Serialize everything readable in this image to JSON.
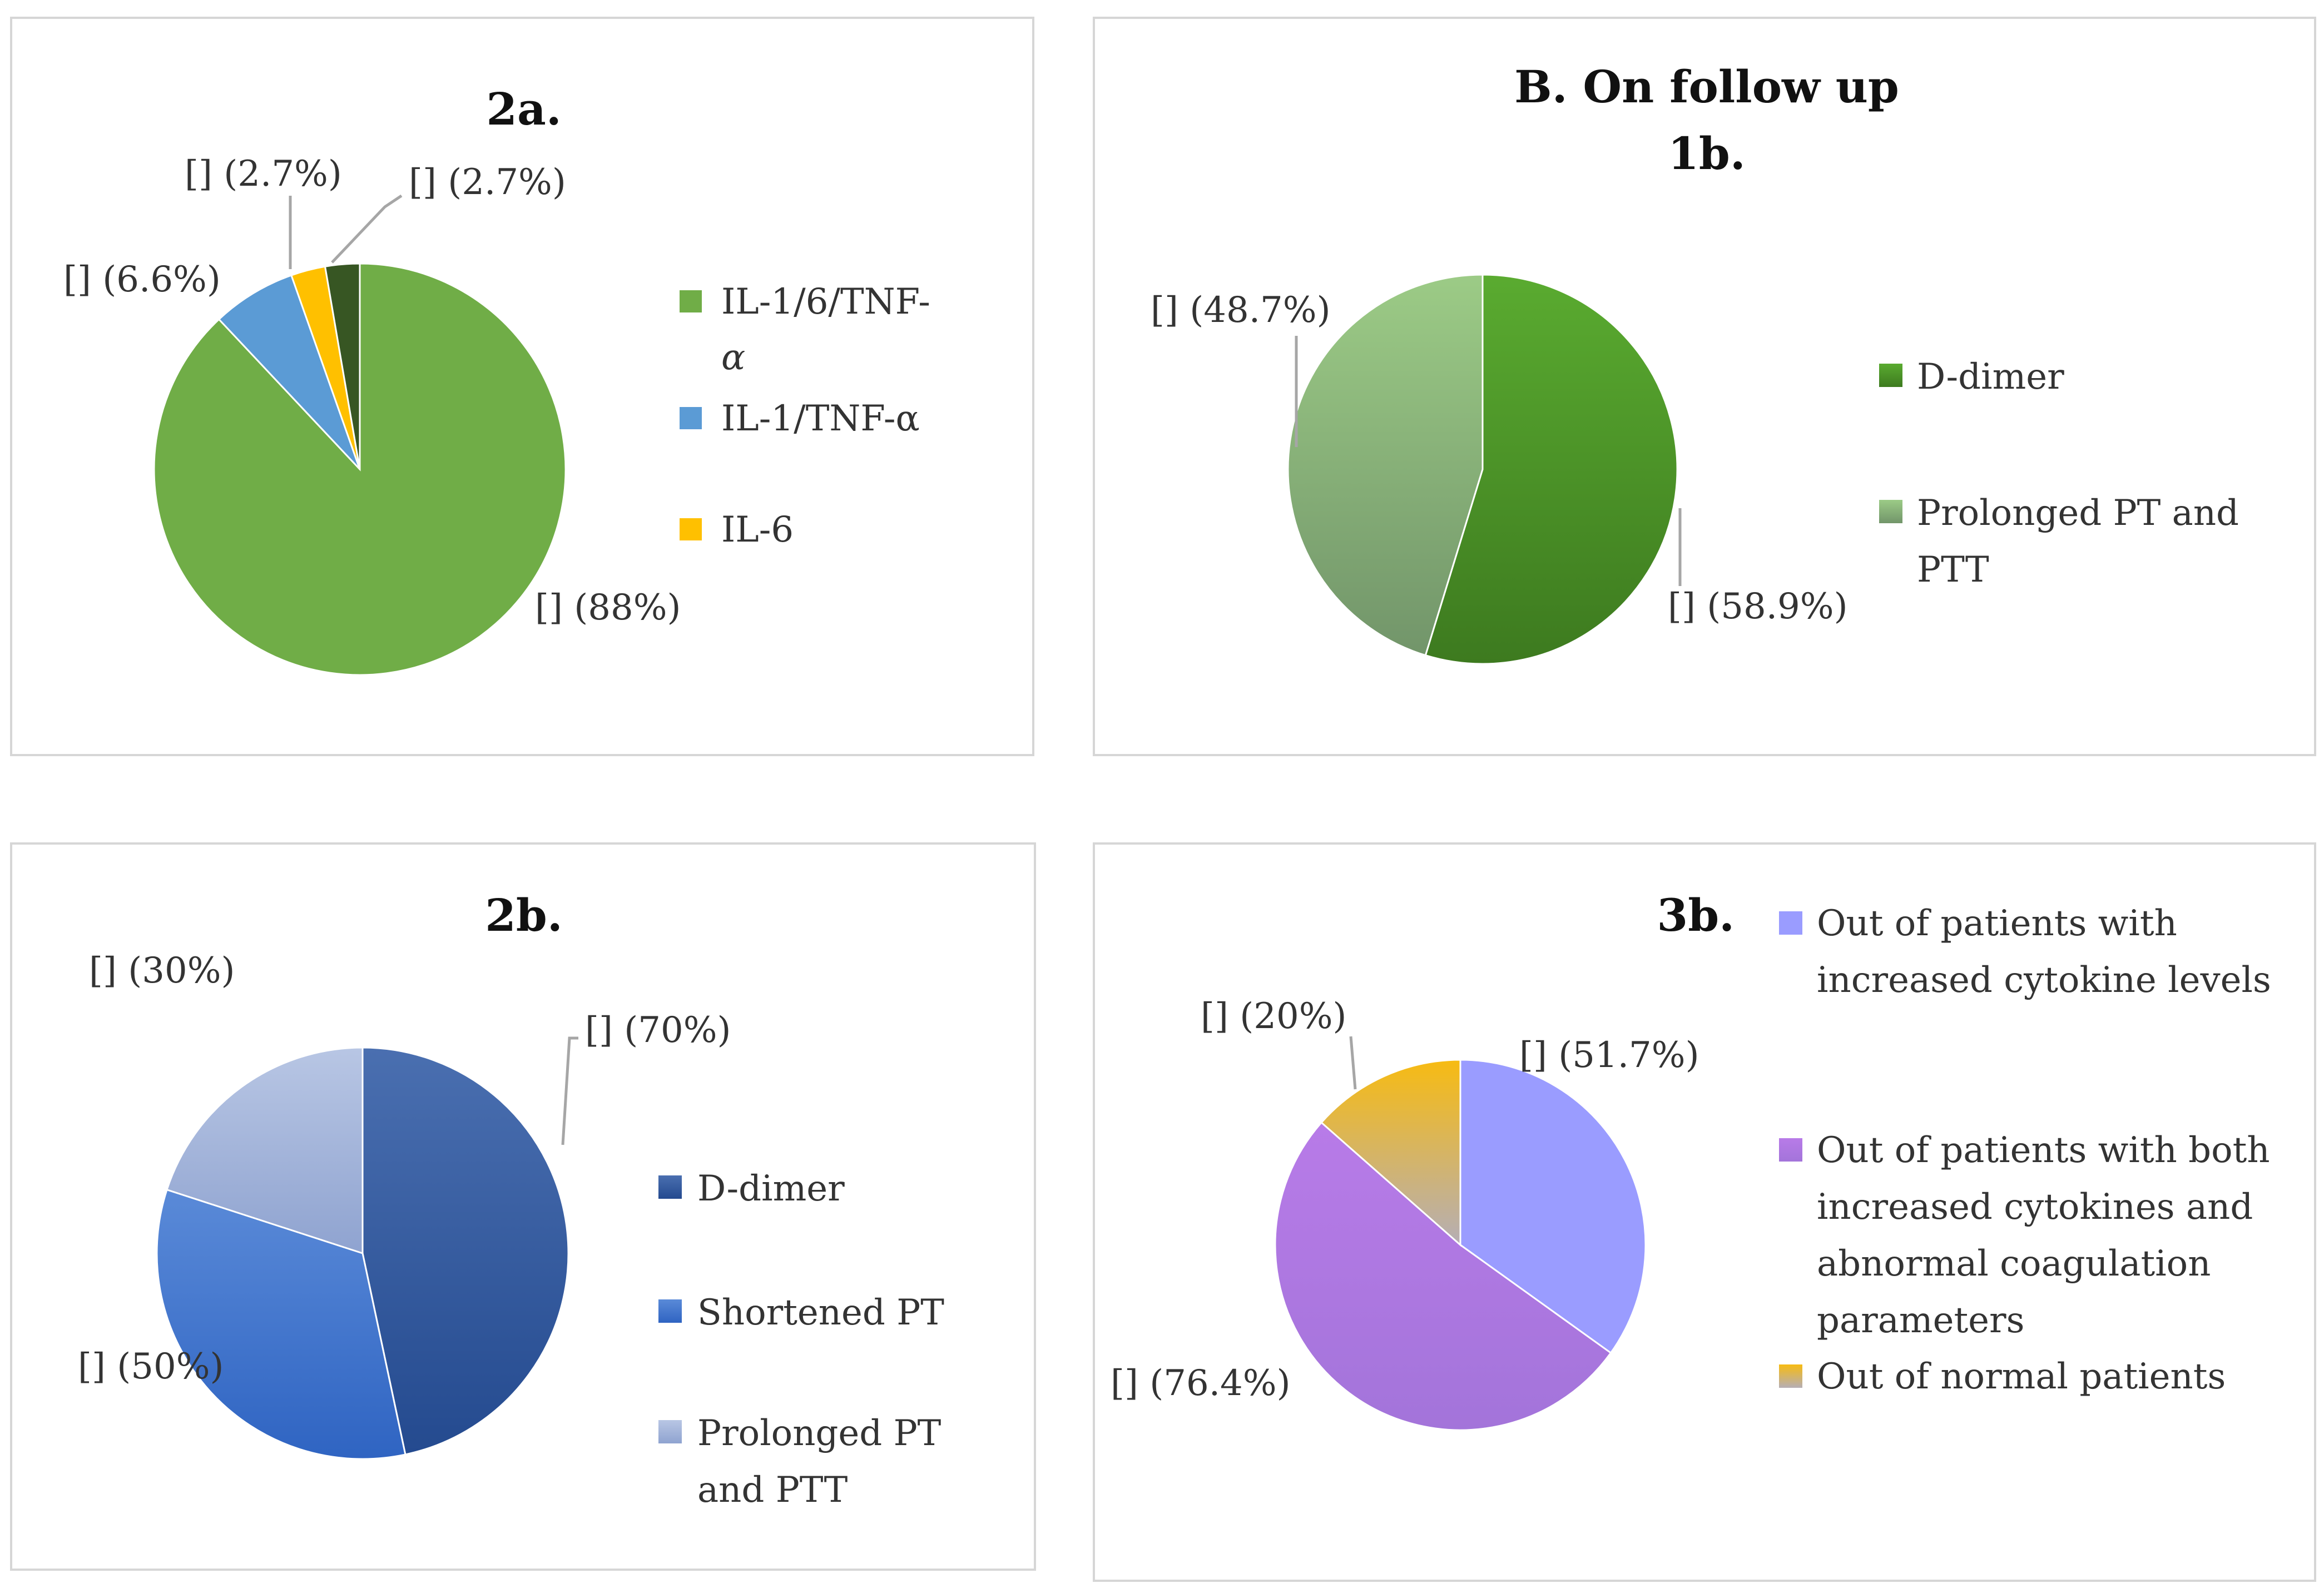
{
  "colors": {
    "green_main": "#70ad47",
    "blue_main": "#5b9bd5",
    "yellow": "#ffc000",
    "dark_green": "#375623",
    "dimer_green": "#4e9a2a",
    "light_green": "#8dbb74",
    "dimer_blue": "#2f5597",
    "short_blue": "#4472c4",
    "prolong_blue": "#a9b9dd",
    "lavender": "#9999ff",
    "purple": "#b07be2",
    "gold": "#f0bb21"
  },
  "chart_data": [
    {
      "id": "2a",
      "type": "pie",
      "title": "2a.",
      "legend_position": "right",
      "legend": [
        "IL-1/6/TNF-α",
        "IL-1/TNF-α",
        "IL-6"
      ],
      "slices": [
        {
          "name": "IL-1/6/TNF-α",
          "value": 88,
          "label": "[] (88%)",
          "color": "#70ad47"
        },
        {
          "name": "IL-1/TNF-α",
          "value": 6.6,
          "label": "[] (6.6%)",
          "color": "#5b9bd5"
        },
        {
          "name": "IL-6",
          "value": 2.7,
          "label": "[] (2.7%)",
          "color": "#ffc000"
        },
        {
          "name": "",
          "value": 2.7,
          "label": "[] (2.7%)",
          "color": "#375623"
        }
      ]
    },
    {
      "id": "1b",
      "type": "pie",
      "title_line1": "B. On follow up",
      "title_line2": "1b.",
      "legend_position": "right",
      "legend": [
        "D-dimer",
        "Prolonged PT and PTT"
      ],
      "slices": [
        {
          "name": "D-dimer",
          "value": 58.9,
          "label": "[] (58.9%)",
          "color": "#4e9a2a"
        },
        {
          "name": "Prolonged PT and PTT",
          "value": 48.7,
          "label": "[] (48.7%)",
          "color": "#8dbb74"
        }
      ]
    },
    {
      "id": "2b",
      "type": "pie",
      "title": "2b.",
      "legend_position": "right",
      "legend": [
        "D-dimer",
        "Shortened PT",
        "Prolonged PT and PTT"
      ],
      "slices": [
        {
          "name": "D-dimer",
          "value": 70,
          "label": "[] (70%)",
          "color": "#2f5597"
        },
        {
          "name": "Shortened PT",
          "value": 50,
          "label": "[] (50%)",
          "color": "#4472c4"
        },
        {
          "name": "Prolonged PT and PTT",
          "value": 30,
          "label": "[] (30%)",
          "color": "#a9b9dd"
        }
      ]
    },
    {
      "id": "3b",
      "type": "pie",
      "title": "3b.",
      "legend_position": "right",
      "legend": [
        "Out of patients with increased cytokine levels",
        "Out of patients with both increased cytokines and abnormal coagulation parameters",
        "Out of normal patients"
      ],
      "slices": [
        {
          "name": "Out of patients with increased cytokine levels",
          "value": 51.7,
          "label": "[] (51.7%)",
          "color": "#9999ff"
        },
        {
          "name": "Out of patients with both increased cytokines and abnormal coagulation parameters",
          "value": 76.4,
          "label": "[] (76.4%)",
          "color": "#b07be2"
        },
        {
          "name": "Out of normal patients",
          "value": 20,
          "label": "[] (20%)",
          "color": "#f0bb21"
        }
      ]
    }
  ],
  "legend_lines": {
    "2a": [
      [
        "IL-1/6/TNF-",
        "α"
      ],
      [
        "IL-1/TNF-α"
      ],
      [
        "IL-6"
      ]
    ],
    "1b": [
      [
        "D-dimer"
      ],
      [
        "Prolonged PT and",
        "PTT"
      ]
    ],
    "2b": [
      [
        "D-dimer"
      ],
      [
        "Shortened PT"
      ],
      [
        "Prolonged PT",
        "and PTT"
      ]
    ],
    "3b": [
      [
        "Out of patients with",
        "increased cytokine levels"
      ],
      [
        "Out of patients with both",
        "increased cytokines and",
        "abnormal coagulation",
        "parameters"
      ],
      [
        "Out of normal patients"
      ]
    ]
  }
}
